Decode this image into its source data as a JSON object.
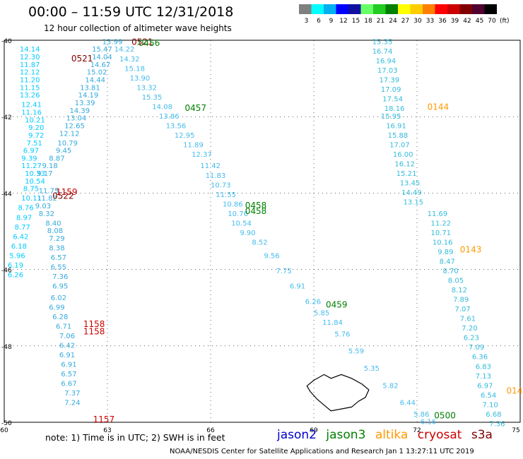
{
  "header": {
    "title": "00:00 – 11:59 UTC 12/31/2018",
    "subtitle": "12 hour collection of altimeter wave heights"
  },
  "colorbar": {
    "unit": "(ft)",
    "ticks": [
      "3",
      "6",
      "9",
      "12",
      "15",
      "18",
      "21",
      "24",
      "27",
      "30",
      "33",
      "36",
      "39",
      "42",
      "45",
      "70"
    ],
    "colors": [
      "#808080",
      "#00ffff",
      "#00b0f0",
      "#0000ff",
      "#1010a0",
      "#66ff66",
      "#22cc22",
      "#008000",
      "#ffff00",
      "#ffcc00",
      "#ff8000",
      "#ff0000",
      "#cc0000",
      "#800000",
      "#500030",
      "#000000"
    ]
  },
  "map": {
    "lon_ticks": [
      "60",
      "63",
      "66",
      "69",
      "72",
      "75"
    ],
    "lat_ticks": [
      "-40",
      "-42",
      "-44",
      "-46",
      "-48",
      "-50"
    ],
    "lon_range": [
      60,
      75
    ],
    "lat_range": [
      -40,
      -50
    ]
  },
  "footer": {
    "note": "note:  1) Time is in UTC;  2) SWH is in feet",
    "credit": "NOAA/NESDIS Center for Satellite Applications and Research     Jan  1 13:27:11 UTC 2019"
  },
  "legend": [
    {
      "name": "jason2",
      "color": "#0000cc"
    },
    {
      "name": "jason3",
      "color": "#008000"
    },
    {
      "name": "altika",
      "color": "#ff9900"
    },
    {
      "name": "cryosat",
      "color": "#cc0000"
    },
    {
      "name": "s3a",
      "color": "#800000"
    }
  ],
  "time_labels": [
    {
      "text": "0521",
      "color": "#800000",
      "lon": 61.95,
      "lat": -40.55
    },
    {
      "text": "0521",
      "color": "#800000",
      "lon": 63.7,
      "lat": -40.12
    },
    {
      "text": "0456",
      "color": "#008000",
      "lon": 63.9,
      "lat": -40.15
    },
    {
      "text": "0457",
      "color": "#008000",
      "lon": 65.25,
      "lat": -41.85
    },
    {
      "text": "0458",
      "color": "#008000",
      "lon": 67.0,
      "lat": -44.4
    },
    {
      "text": "0458",
      "color": "#008000",
      "lon": 67.0,
      "lat": -44.55
    },
    {
      "text": "0459",
      "color": "#008000",
      "lon": 69.35,
      "lat": -47.0
    },
    {
      "text": "0500",
      "color": "#008000",
      "lon": 72.5,
      "lat": -49.9
    },
    {
      "text": "1159",
      "color": "#cc0000",
      "lon": 61.5,
      "lat": -44.05
    },
    {
      "text": "0522",
      "color": "#800000",
      "lon": 61.4,
      "lat": -44.15
    },
    {
      "text": "1158",
      "color": "#cc0000",
      "lon": 62.3,
      "lat": -47.5
    },
    {
      "text": "1158",
      "color": "#cc0000",
      "lon": 62.3,
      "lat": -47.7
    },
    {
      "text": "1157",
      "color": "#cc0000",
      "lon": 62.58,
      "lat": -50.0
    },
    {
      "text": "0144",
      "color": "#ff9900",
      "lon": 72.3,
      "lat": -41.82
    },
    {
      "text": "0143",
      "color": "#ff9900",
      "lon": 73.25,
      "lat": -45.55
    },
    {
      "text": "014",
      "color": "#ff9900",
      "lon": 74.6,
      "lat": -49.25
    }
  ],
  "tracks": [
    {
      "name": "track-west-arc",
      "points": [
        {
          "lon": 60.45,
          "lat": -40.3,
          "v": "14.14"
        },
        {
          "lon": 60.45,
          "lat": -40.5,
          "v": "12.30"
        },
        {
          "lon": 60.45,
          "lat": -40.7,
          "v": "11.87"
        },
        {
          "lon": 60.45,
          "lat": -40.9,
          "v": "12.12"
        },
        {
          "lon": 60.45,
          "lat": -41.1,
          "v": "11.20"
        },
        {
          "lon": 60.45,
          "lat": -41.3,
          "v": "11.15"
        },
        {
          "lon": 60.45,
          "lat": -41.5,
          "v": "13.26"
        },
        {
          "lon": 60.5,
          "lat": -41.75,
          "v": "12.41"
        },
        {
          "lon": 60.5,
          "lat": -41.95,
          "v": "11.16"
        },
        {
          "lon": 60.6,
          "lat": -42.15,
          "v": "10.21"
        },
        {
          "lon": 60.7,
          "lat": -42.35,
          "v": "9.20"
        },
        {
          "lon": 60.7,
          "lat": -42.55,
          "v": "9.72"
        },
        {
          "lon": 60.65,
          "lat": -42.75,
          "v": "7.51"
        },
        {
          "lon": 60.55,
          "lat": -42.95,
          "v": "6.97"
        },
        {
          "lon": 60.5,
          "lat": -43.15,
          "v": "9.39"
        },
        {
          "lon": 60.5,
          "lat": -43.35,
          "v": "11.27"
        },
        {
          "lon": 60.6,
          "lat": -43.55,
          "v": "10.33"
        },
        {
          "lon": 60.6,
          "lat": -43.75,
          "v": "10.54"
        },
        {
          "lon": 60.55,
          "lat": -43.95,
          "v": "8.75"
        },
        {
          "lon": 60.5,
          "lat": -44.2,
          "v": "10.11"
        },
        {
          "lon": 60.4,
          "lat": -44.45,
          "v": "8.76"
        },
        {
          "lon": 60.35,
          "lat": -44.7,
          "v": "8.97"
        },
        {
          "lon": 60.3,
          "lat": -44.95,
          "v": "8.77"
        },
        {
          "lon": 60.25,
          "lat": -45.2,
          "v": "6.42"
        },
        {
          "lon": 60.2,
          "lat": -45.45,
          "v": "6.18"
        },
        {
          "lon": 60.15,
          "lat": -45.7,
          "v": "5.96"
        },
        {
          "lon": 60.1,
          "lat": -45.95,
          "v": "6.19"
        },
        {
          "lon": 60.1,
          "lat": -46.2,
          "v": "6.26"
        }
      ],
      "color": "#00ccff"
    },
    {
      "name": "track-west-rising",
      "points": [
        {
          "lon": 62.85,
          "lat": -40.1,
          "v": "13.99"
        },
        {
          "lon": 62.55,
          "lat": -40.3,
          "v": "15.47"
        },
        {
          "lon": 62.55,
          "lat": -40.5,
          "v": "14.04"
        },
        {
          "lon": 62.5,
          "lat": -40.7,
          "v": "14.67"
        },
        {
          "lon": 62.4,
          "lat": -40.9,
          "v": "15.02"
        },
        {
          "lon": 62.35,
          "lat": -41.1,
          "v": "14.44"
        },
        {
          "lon": 62.2,
          "lat": -41.3,
          "v": "13.81"
        },
        {
          "lon": 62.15,
          "lat": -41.5,
          "v": "14.19"
        },
        {
          "lon": 62.05,
          "lat": -41.7,
          "v": "13.39"
        },
        {
          "lon": 61.9,
          "lat": -41.9,
          "v": "14.39"
        },
        {
          "lon": 61.8,
          "lat": -42.1,
          "v": "13.04"
        },
        {
          "lon": 61.75,
          "lat": -42.3,
          "v": "12.65"
        },
        {
          "lon": 61.6,
          "lat": -42.5,
          "v": "12.12"
        },
        {
          "lon": 61.55,
          "lat": -42.75,
          "v": "10.79"
        },
        {
          "lon": 61.5,
          "lat": -42.95,
          "v": "9.45"
        },
        {
          "lon": 61.3,
          "lat": -43.15,
          "v": "8.87"
        },
        {
          "lon": 61.1,
          "lat": -43.35,
          "v": "9.18"
        },
        {
          "lon": 60.95,
          "lat": -43.55,
          "v": "9.17"
        },
        {
          "lon": 61.0,
          "lat": -44.0,
          "v": "11.75"
        },
        {
          "lon": 60.95,
          "lat": -44.2,
          "v": "11.82"
        },
        {
          "lon": 60.9,
          "lat": -44.4,
          "v": "9.03"
        },
        {
          "lon": 61.0,
          "lat": -44.6,
          "v": "8.32"
        },
        {
          "lon": 61.2,
          "lat": -44.85,
          "v": "8.40"
        },
        {
          "lon": 61.25,
          "lat": -45.05,
          "v": "8.08"
        },
        {
          "lon": 61.3,
          "lat": -45.25,
          "v": "7.29"
        },
        {
          "lon": 61.3,
          "lat": -45.5,
          "v": "8.38"
        },
        {
          "lon": 61.35,
          "lat": -45.75,
          "v": "6.57"
        },
        {
          "lon": 61.35,
          "lat": -46.0,
          "v": "6.55"
        },
        {
          "lon": 61.4,
          "lat": -46.25,
          "v": "7.36"
        },
        {
          "lon": 61.4,
          "lat": -46.5,
          "v": "6.95"
        },
        {
          "lon": 61.35,
          "lat": -46.8,
          "v": "6.02"
        },
        {
          "lon": 61.3,
          "lat": -47.05,
          "v": "6.99"
        },
        {
          "lon": 61.4,
          "lat": -47.3,
          "v": "6.28"
        },
        {
          "lon": 61.5,
          "lat": -47.55,
          "v": "6.71"
        },
        {
          "lon": 61.6,
          "lat": -47.8,
          "v": "7.06"
        },
        {
          "lon": 61.6,
          "lat": -48.05,
          "v": "6.42"
        },
        {
          "lon": 61.6,
          "lat": -48.3,
          "v": "6.91"
        },
        {
          "lon": 61.65,
          "lat": -48.55,
          "v": "6.91"
        },
        {
          "lon": 61.65,
          "lat": -48.8,
          "v": "6.57"
        },
        {
          "lon": 61.65,
          "lat": -49.05,
          "v": "6.67"
        },
        {
          "lon": 61.75,
          "lat": -49.3,
          "v": "7.37"
        },
        {
          "lon": 61.75,
          "lat": -49.55,
          "v": "7.24"
        }
      ],
      "color": "#33aadd"
    },
    {
      "name": "track-diagonal",
      "points": [
        {
          "lon": 63.2,
          "lat": -40.3,
          "v": "14.22"
        },
        {
          "lon": 63.35,
          "lat": -40.55,
          "v": "14.32"
        },
        {
          "lon": 63.5,
          "lat": -40.8,
          "v": "15.18"
        },
        {
          "lon": 63.65,
          "lat": -41.05,
          "v": "13.90"
        },
        {
          "lon": 63.85,
          "lat": -41.3,
          "v": "13.32"
        },
        {
          "lon": 64.0,
          "lat": -41.55,
          "v": "15.35"
        },
        {
          "lon": 64.3,
          "lat": -41.8,
          "v": "14.08"
        },
        {
          "lon": 64.5,
          "lat": -42.05,
          "v": "13.86"
        },
        {
          "lon": 64.7,
          "lat": -42.3,
          "v": "13.56"
        },
        {
          "lon": 64.95,
          "lat": -42.55,
          "v": "12.95"
        },
        {
          "lon": 65.2,
          "lat": -42.8,
          "v": "11.89"
        },
        {
          "lon": 65.45,
          "lat": -43.05,
          "v": "12.37"
        },
        {
          "lon": 65.7,
          "lat": -43.35,
          "v": "11.42"
        },
        {
          "lon": 65.85,
          "lat": -43.6,
          "v": "11.83"
        },
        {
          "lon": 66.0,
          "lat": -43.85,
          "v": "10.73"
        },
        {
          "lon": 66.15,
          "lat": -44.1,
          "v": "11.55"
        },
        {
          "lon": 66.35,
          "lat": -44.35,
          "v": "10.86"
        },
        {
          "lon": 66.5,
          "lat": -44.6,
          "v": "10.76"
        },
        {
          "lon": 66.6,
          "lat": -44.85,
          "v": "10.54"
        },
        {
          "lon": 66.85,
          "lat": -45.1,
          "v": "9.90"
        },
        {
          "lon": 67.2,
          "lat": -45.35,
          "v": "8.52"
        },
        {
          "lon": 67.55,
          "lat": -45.7,
          "v": "9.56"
        },
        {
          "lon": 67.9,
          "lat": -46.1,
          "v": "7.75"
        },
        {
          "lon": 68.3,
          "lat": -46.5,
          "v": "6.91"
        },
        {
          "lon": 68.75,
          "lat": -46.9,
          "v": "6.26"
        },
        {
          "lon": 69.0,
          "lat": -47.2,
          "v": "5.85"
        },
        {
          "lon": 69.25,
          "lat": -47.45,
          "v": "11.84"
        },
        {
          "lon": 69.6,
          "lat": -47.75,
          "v": "5.76"
        },
        {
          "lon": 70.0,
          "lat": -48.2,
          "v": "5.59"
        },
        {
          "lon": 70.45,
          "lat": -48.65,
          "v": "5.35"
        },
        {
          "lon": 71.0,
          "lat": -49.1,
          "v": "5.82"
        },
        {
          "lon": 71.5,
          "lat": -49.55,
          "v": "6.44"
        },
        {
          "lon": 71.9,
          "lat": -49.85,
          "v": "5.86"
        },
        {
          "lon": 72.1,
          "lat": -50.05,
          "v": "6.16"
        }
      ],
      "color": "#44bbee"
    },
    {
      "name": "track-east-descending",
      "points": [
        {
          "lon": 70.7,
          "lat": -40.1,
          "v": "15.35"
        },
        {
          "lon": 70.7,
          "lat": -40.35,
          "v": "16.74"
        },
        {
          "lon": 70.8,
          "lat": -40.6,
          "v": "16.94"
        },
        {
          "lon": 70.85,
          "lat": -40.85,
          "v": "17.03"
        },
        {
          "lon": 70.9,
          "lat": -41.1,
          "v": "17.39"
        },
        {
          "lon": 70.95,
          "lat": -41.35,
          "v": "17.09"
        },
        {
          "lon": 71.0,
          "lat": -41.6,
          "v": "17.54"
        },
        {
          "lon": 71.05,
          "lat": -41.85,
          "v": "18.16"
        },
        {
          "lon": 70.95,
          "lat": -42.05,
          "v": "15.95"
        },
        {
          "lon": 71.1,
          "lat": -42.3,
          "v": "16.91"
        },
        {
          "lon": 71.15,
          "lat": -42.55,
          "v": "15.88"
        },
        {
          "lon": 71.2,
          "lat": -42.8,
          "v": "17.07"
        },
        {
          "lon": 71.3,
          "lat": -43.05,
          "v": "16.00"
        },
        {
          "lon": 71.35,
          "lat": -43.3,
          "v": "16.12"
        },
        {
          "lon": 71.4,
          "lat": -43.55,
          "v": "15.21"
        },
        {
          "lon": 71.5,
          "lat": -43.8,
          "v": "13.45"
        },
        {
          "lon": 71.55,
          "lat": -44.05,
          "v": "14.49"
        },
        {
          "lon": 71.6,
          "lat": -44.3,
          "v": "13.15"
        },
        {
          "lon": 72.3,
          "lat": -44.6,
          "v": "11.69"
        },
        {
          "lon": 72.4,
          "lat": -44.85,
          "v": "11.22"
        },
        {
          "lon": 72.4,
          "lat": -45.1,
          "v": "10.71"
        },
        {
          "lon": 72.45,
          "lat": -45.35,
          "v": "10.16"
        },
        {
          "lon": 72.6,
          "lat": -45.6,
          "v": "9.89"
        },
        {
          "lon": 72.65,
          "lat": -45.85,
          "v": "8.47"
        },
        {
          "lon": 72.75,
          "lat": -46.1,
          "v": "8.70"
        },
        {
          "lon": 72.9,
          "lat": -46.35,
          "v": "8.05"
        },
        {
          "lon": 73.0,
          "lat": -46.6,
          "v": "8.12"
        },
        {
          "lon": 73.05,
          "lat": -46.85,
          "v": "7.89"
        },
        {
          "lon": 73.1,
          "lat": -47.1,
          "v": "7.07"
        },
        {
          "lon": 73.25,
          "lat": -47.35,
          "v": "7.61"
        },
        {
          "lon": 73.3,
          "lat": -47.6,
          "v": "7.20"
        },
        {
          "lon": 73.35,
          "lat": -47.85,
          "v": "6.23"
        },
        {
          "lon": 73.5,
          "lat": -48.1,
          "v": "7.09"
        },
        {
          "lon": 73.6,
          "lat": -48.35,
          "v": "6.36"
        },
        {
          "lon": 73.7,
          "lat": -48.6,
          "v": "6.83"
        },
        {
          "lon": 73.7,
          "lat": -48.85,
          "v": "7.13"
        },
        {
          "lon": 73.75,
          "lat": -49.1,
          "v": "6.97"
        },
        {
          "lon": 73.85,
          "lat": -49.35,
          "v": "6.54"
        },
        {
          "lon": 73.9,
          "lat": -49.6,
          "v": "7.10"
        },
        {
          "lon": 74.0,
          "lat": -49.85,
          "v": "6.68"
        },
        {
          "lon": 74.1,
          "lat": -50.1,
          "v": "7.36"
        }
      ],
      "color": "#33bbdd"
    }
  ]
}
